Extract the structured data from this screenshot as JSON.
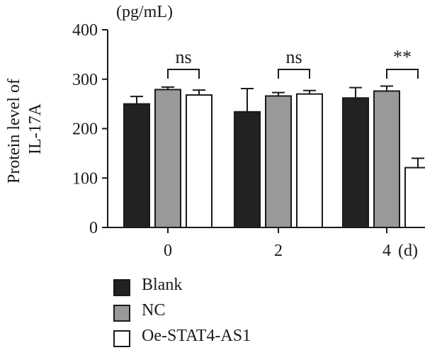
{
  "chart_data": {
    "type": "bar",
    "unit_label": "(pg/mL)",
    "ylabel": [
      "Protein level of",
      "IL-17A"
    ],
    "xlabel": "(d)",
    "ylim": [
      0,
      400
    ],
    "yticks": [
      0,
      100,
      200,
      300,
      400
    ],
    "categories": [
      "0",
      "2",
      "4"
    ],
    "series": [
      {
        "name": "Blank",
        "color": "#222222",
        "values": [
          250,
          234,
          262
        ],
        "errors": [
          15,
          47,
          21
        ]
      },
      {
        "name": "NC",
        "color": "#999999",
        "values": [
          279,
          266,
          276
        ],
        "errors": [
          5,
          7,
          10
        ]
      },
      {
        "name": "Oe-STAT4-AS1",
        "color": "#ffffff",
        "values": [
          268,
          270,
          121
        ],
        "errors": [
          10,
          7,
          19
        ]
      }
    ],
    "significance": [
      {
        "category": "0",
        "label": "ns"
      },
      {
        "category": "2",
        "label": "ns"
      },
      {
        "category": "4",
        "label": "**"
      }
    ],
    "legend_position": "bottom-left"
  }
}
